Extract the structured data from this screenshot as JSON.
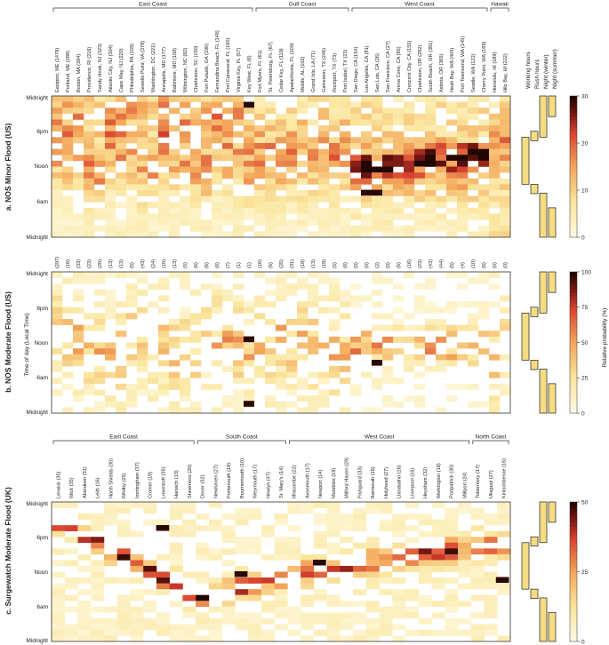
{
  "panels": {
    "a": {
      "title": "a. NOS Minor Flood (US)"
    },
    "b": {
      "title": "b. NOS Moderate Flood (US)",
      "ylabel": "Time of day (Local Time)"
    },
    "c": {
      "title": "c. Surgewatch Moderate Flood (UK)"
    }
  },
  "ticks": {
    "midnight": "Midnight",
    "6pm": "6pm",
    "noon": "Noon",
    "6am": "6am"
  },
  "groups_us": [
    "East Coast",
    "Gulf Coast",
    "West Coast",
    "Hawaii"
  ],
  "groups_uk": [
    "East Coast",
    "South Coast",
    "West Coast",
    "North Coast"
  ],
  "side_labels": [
    "Working hours",
    "Rush hours",
    "Night (winter)",
    "Night (summer)"
  ],
  "colorbar": {
    "label": "Relative probability (%)",
    "ticks_a": [
      "30",
      "20",
      "10",
      "0"
    ],
    "ticks_b": [
      "100",
      "75",
      "50",
      "25",
      "0"
    ],
    "ticks_c": [
      "50",
      "25",
      "0"
    ]
  },
  "colors": {
    "low": "#fdf3c0",
    "mid": "#f3a35a",
    "high": "#d13a2a",
    "max": "#2a0a00",
    "band_fill": "#f4dc82",
    "band_stroke": "#222222"
  },
  "chart_data": [
    {
      "type": "heatmap",
      "title": "a. NOS Minor Flood (US)",
      "stations": [
        "Eastport, ME (1479)",
        "Portland, ME (288)",
        "Boston, MA (394)",
        "Providence, RI (216)",
        "Sandy Hook, NJ (323)",
        "Atlantic City, NJ (304)",
        "Cape May, NJ (220)",
        "Philadelphia, PA (159)",
        "Sewells Point, VA (378)",
        "Washington, DC (221)",
        "Annapolis, MD (177)",
        "Baltimore, MD (158)",
        "Wilmington, NC (82)",
        "Charleston, SC (150)",
        "Fort Pulaski, GA (190)",
        "Fernandina Beach, FL (148)",
        "Port Canaveral, FL (160)",
        "Virginia Key, FL (57)",
        "Key West, FL (6)",
        "Fort Myers, FL (61)",
        "St. Petersburg, FL (67)",
        "Cedar Key, FL (119)",
        "Apalachicola, FL (109)",
        "Mobile, AL (102)",
        "Grand Isle, LA (71)",
        "Galveston, TX (246)",
        "Rockport, TX (73)",
        "Port Isabel, TX (23)",
        "San Diego, CA (154)",
        "Los Angeles, CA (81)",
        "San Luis, CA (26)",
        "San Francisco, CA (27)",
        "Arena Cove, CA (85)",
        "Crescent City, CA (155)",
        "Charleston, OR (282)",
        "South Beach, OR (381)",
        "Astoria, OR (365)",
        "Neah Bay, WA (405)",
        "Port Townsend, WA (145)",
        "Seattle, WA (122)",
        "Cherry Point, WA (169)",
        "Honolulu, HI (189)",
        "Hilo Bay, HI (222)"
      ],
      "groups": [
        {
          "name": "East Coast",
          "count": 19
        },
        {
          "name": "Gulf Coast",
          "count": 9
        },
        {
          "name": "West Coast",
          "count": 13
        },
        {
          "name": "Hawaii",
          "count": 2
        }
      ],
      "y_ticks": [
        "Midnight",
        "6pm",
        "Noon",
        "6am",
        "Midnight"
      ],
      "colorbar_range": [
        0,
        33
      ],
      "clabel": "Relative probability (%)"
    },
    {
      "type": "heatmap",
      "title": "b. NOS Moderate Flood (US)",
      "ylabel": "Time of day (Local Time)",
      "counts": [
        "(297)",
        "(16)",
        "(33)",
        "(23)",
        "(20)",
        "(13)",
        "(13)",
        "(5)",
        "(43)",
        "(24)",
        "(10)",
        "(13)",
        "(5)",
        "(6)",
        "(6)",
        "(6)",
        "(7)",
        "(1)",
        "(1)",
        "(16)",
        "(6)",
        "(25)",
        "(31)",
        "(18)",
        "(13)",
        "(18)",
        "(5)",
        "(6)",
        "(0)",
        "(0)",
        "(2)",
        "(0)",
        "(6)",
        "(16)",
        "(23)",
        "(43)",
        "(44)",
        "(5)",
        "(4)",
        "(10)",
        "(6)",
        "(0)",
        "(0)"
      ],
      "y_ticks": [
        "Midnight",
        "6pm",
        "Noon",
        "6am",
        "Midnight"
      ],
      "colorbar_range": [
        0,
        100
      ],
      "clabel": "Relative probability (%)"
    },
    {
      "type": "heatmap",
      "title": "c. Surgewatch Moderate Flood (UK)",
      "stations": [
        "Lerwick (35)",
        "Wick (35)",
        "Aberdeen (31)",
        "Leith (16)",
        "North Shields (35)",
        "Whitby (25)",
        "Immingham (37)",
        "Cromer (19)",
        "Lowestoft (35)",
        "Harwich (13)",
        "Sheerness (20)",
        "Dover (32)",
        "Newhaven (27)",
        "Portsmouth (18)",
        "Bournemouth (10)",
        "Weymouth (17)",
        "Newlyn (47)",
        "St. Mary's (14)",
        "Ilfracombe (22)",
        "Avonmouth (17)",
        "Newport (14)",
        "Mumbles (19)",
        "Milford Haven (29)",
        "Fishguard (33)",
        "Barmouth (16)",
        "Holyhead (27)",
        "Llandudno (16)",
        "Liverpool (16)",
        "Heysham (32)",
        "Workington (18)",
        "Portpatrick (30)",
        "Millport (24)",
        "Tobermory (17)",
        "Ullapool (27)",
        "Kinlochbervie (16)"
      ],
      "groups": [
        {
          "name": "East Coast",
          "count": 11
        },
        {
          "name": "South Coast",
          "count": 7
        },
        {
          "name": "West Coast",
          "count": 14
        },
        {
          "name": "North Coast",
          "count": 3
        }
      ],
      "y_ticks": [
        "Midnight",
        "6pm",
        "Noon",
        "6am",
        "Midnight"
      ],
      "colorbar_range": [
        0,
        50
      ],
      "clabel": "Relative probability (%)"
    }
  ]
}
